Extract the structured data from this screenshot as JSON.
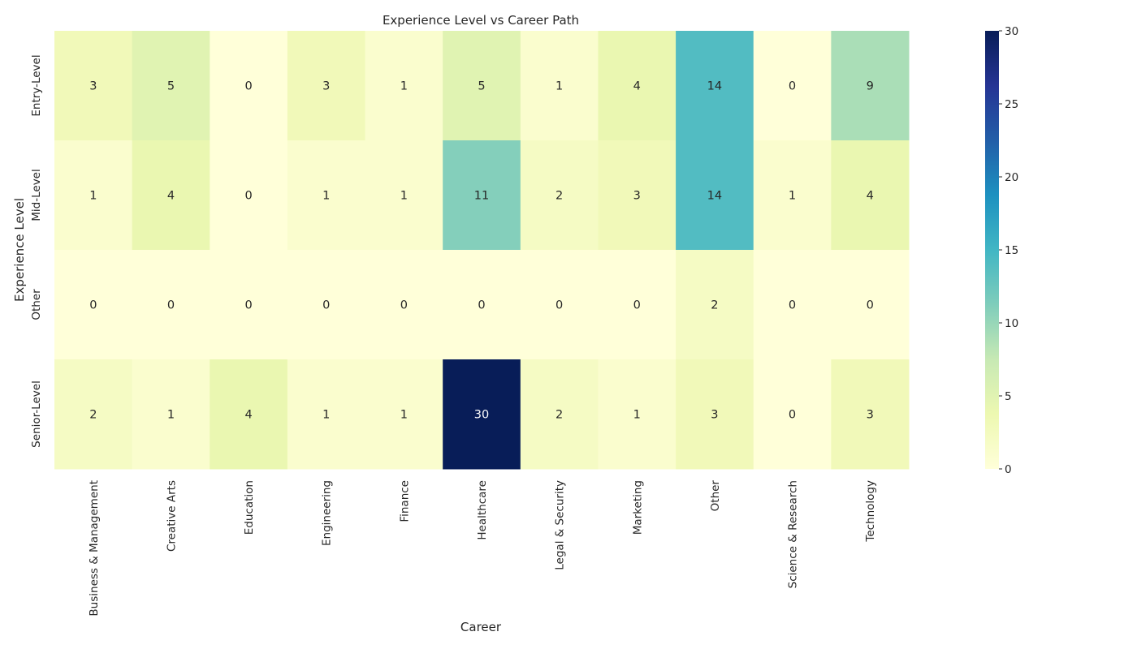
{
  "chart_data": {
    "type": "heatmap",
    "title": "Experience Level vs Career Path",
    "xlabel": "Career",
    "ylabel": "Experience Level",
    "x_categories": [
      "Business & Management",
      "Creative Arts",
      "Education",
      "Engineering",
      "Finance",
      "Healthcare",
      "Legal & Security",
      "Marketing",
      "Other",
      "Science & Research",
      "Technology"
    ],
    "y_categories": [
      "Entry-Level",
      "Mid-Level",
      "Other",
      "Senior-Level"
    ],
    "values": [
      [
        3,
        5,
        0,
        3,
        1,
        5,
        1,
        4,
        14,
        0,
        9
      ],
      [
        1,
        4,
        0,
        1,
        1,
        11,
        2,
        3,
        14,
        1,
        4
      ],
      [
        0,
        0,
        0,
        0,
        0,
        0,
        0,
        0,
        2,
        0,
        0
      ],
      [
        2,
        1,
        4,
        1,
        1,
        30,
        2,
        1,
        3,
        0,
        3
      ]
    ],
    "colorbar": {
      "min": 0,
      "max": 30,
      "ticks": [
        0,
        5,
        10,
        15,
        20,
        25,
        30
      ]
    },
    "colormap": "YlGnBu",
    "colormap_stops": [
      "#ffffd9",
      "#edf8b1",
      "#c7e9b4",
      "#7fcdbb",
      "#41b6c4",
      "#1d91c0",
      "#225ea8",
      "#253494",
      "#081d58"
    ],
    "grid": false,
    "legend": "colorbar-right"
  }
}
